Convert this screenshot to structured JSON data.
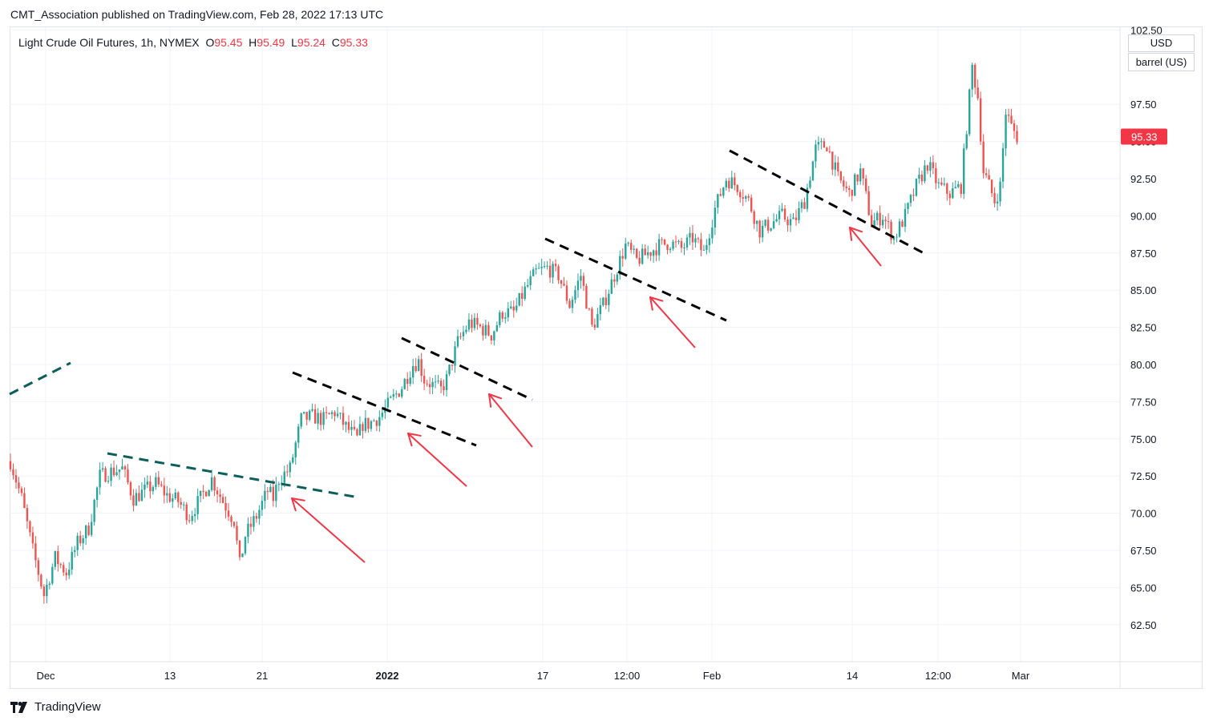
{
  "header": {
    "published_by": "CMT_Association published on TradingView.com, Feb 28, 2022 17:13 UTC"
  },
  "legend": {
    "symbol": "Light Crude Oil Futures, 1h, NYMEX",
    "open_label": "O",
    "open": "95.45",
    "high_label": "H",
    "high": "95.49",
    "low_label": "L",
    "low": "95.24",
    "close_label": "C",
    "close": "95.33"
  },
  "price_scale": {
    "currency": "USD",
    "unit": "barrel (US)",
    "last_price": "95.33",
    "last_price_color": "#f23645"
  },
  "footer": {
    "brand": "TradingView"
  },
  "colors": {
    "up": "#26a69a",
    "down": "#ef5350",
    "arrow": "#f23645",
    "teal_trend": "#0b5e5a",
    "black_trend": "#000000"
  },
  "chart_data": {
    "type": "candlestick",
    "title": "Light Crude Oil Futures, 1h, NYMEX",
    "ylim": [
      60,
      102.5
    ],
    "y_ticks": [
      "102.50",
      "97.50",
      "95.00",
      "92.50",
      "90.00",
      "87.50",
      "85.00",
      "82.50",
      "80.00",
      "77.50",
      "75.00",
      "72.50",
      "70.00",
      "67.50",
      "65.00",
      "62.50"
    ],
    "x_ticks": [
      "Dec",
      "13",
      "21",
      "2022",
      "17",
      "12:00",
      "Feb",
      "14",
      "12:00",
      "Mar"
    ],
    "x_ticks_bold": [
      "2022"
    ],
    "price_path": [
      {
        "d": 0.0,
        "p": 73.5
      },
      {
        "d": 1.0,
        "p": 71.0
      },
      {
        "d": 2.0,
        "p": 67.5
      },
      {
        "d": 3.0,
        "p": 64.5
      },
      {
        "d": 4.0,
        "p": 67.0
      },
      {
        "d": 5.0,
        "p": 66.0
      },
      {
        "d": 6.0,
        "p": 68.0
      },
      {
        "d": 7.0,
        "p": 69.0
      },
      {
        "d": 8.0,
        "p": 72.5
      },
      {
        "d": 9.0,
        "p": 72.8
      },
      {
        "d": 10.0,
        "p": 73.0
      },
      {
        "d": 11.0,
        "p": 71.0
      },
      {
        "d": 12.0,
        "p": 71.5
      },
      {
        "d": 13.0,
        "p": 72.0
      },
      {
        "d": 14.0,
        "p": 71.2
      },
      {
        "d": 15.0,
        "p": 70.8
      },
      {
        "d": 16.0,
        "p": 69.8
      },
      {
        "d": 17.0,
        "p": 71.0
      },
      {
        "d": 18.0,
        "p": 72.3
      },
      {
        "d": 19.0,
        "p": 70.8
      },
      {
        "d": 20.0,
        "p": 69.5
      },
      {
        "d": 20.5,
        "p": 66.5
      },
      {
        "d": 21.0,
        "p": 68.5
      },
      {
        "d": 22.0,
        "p": 69.8
      },
      {
        "d": 23.0,
        "p": 71.5
      },
      {
        "d": 23.5,
        "p": 71.0
      },
      {
        "d": 24.0,
        "p": 72.3
      },
      {
        "d": 25.0,
        "p": 73.0
      },
      {
        "d": 26.0,
        "p": 76.3
      },
      {
        "d": 27.0,
        "p": 76.5
      },
      {
        "d": 28.0,
        "p": 76.3
      },
      {
        "d": 29.0,
        "p": 76.8
      },
      {
        "d": 30.0,
        "p": 75.8
      },
      {
        "d": 31.0,
        "p": 75.0
      },
      {
        "d": 31.5,
        "p": 76.0
      },
      {
        "d": 32.0,
        "p": 76.0
      },
      {
        "d": 33.0,
        "p": 76.5
      },
      {
        "d": 34.0,
        "p": 77.5
      },
      {
        "d": 35.0,
        "p": 78.5
      },
      {
        "d": 36.0,
        "p": 80.0
      },
      {
        "d": 36.5,
        "p": 80.2
      },
      {
        "d": 37.0,
        "p": 79.0
      },
      {
        "d": 38.0,
        "p": 78.5
      },
      {
        "d": 38.5,
        "p": 78.3
      },
      {
        "d": 39.0,
        "p": 79.0
      },
      {
        "d": 40.0,
        "p": 81.5
      },
      {
        "d": 41.0,
        "p": 82.8
      },
      {
        "d": 42.0,
        "p": 82.5
      },
      {
        "d": 43.0,
        "p": 82.0
      },
      {
        "d": 44.0,
        "p": 83.5
      },
      {
        "d": 45.0,
        "p": 83.5
      },
      {
        "d": 46.0,
        "p": 85.0
      },
      {
        "d": 47.0,
        "p": 86.2
      },
      {
        "d": 48.0,
        "p": 86.5
      },
      {
        "d": 49.0,
        "p": 86.0
      },
      {
        "d": 50.0,
        "p": 84.0
      },
      {
        "d": 51.0,
        "p": 86.0
      },
      {
        "d": 52.0,
        "p": 82.5
      },
      {
        "d": 53.0,
        "p": 84.0
      },
      {
        "d": 54.0,
        "p": 86.0
      },
      {
        "d": 55.0,
        "p": 88.0
      },
      {
        "d": 56.0,
        "p": 87.0
      },
      {
        "d": 57.0,
        "p": 87.5
      },
      {
        "d": 58.0,
        "p": 88.0
      },
      {
        "d": 59.0,
        "p": 88.2
      },
      {
        "d": 60.0,
        "p": 87.8
      },
      {
        "d": 61.0,
        "p": 88.5
      },
      {
        "d": 62.0,
        "p": 87.5
      },
      {
        "d": 63.0,
        "p": 90.5
      },
      {
        "d": 64.0,
        "p": 92.5
      },
      {
        "d": 65.0,
        "p": 92.0
      },
      {
        "d": 66.0,
        "p": 91.0
      },
      {
        "d": 67.0,
        "p": 89.0
      },
      {
        "d": 68.0,
        "p": 89.5
      },
      {
        "d": 69.0,
        "p": 90.0
      },
      {
        "d": 70.0,
        "p": 89.5
      },
      {
        "d": 71.0,
        "p": 91.0
      },
      {
        "d": 72.0,
        "p": 94.5
      },
      {
        "d": 73.0,
        "p": 94.8
      },
      {
        "d": 74.0,
        "p": 92.5
      },
      {
        "d": 75.0,
        "p": 91.5
      },
      {
        "d": 76.0,
        "p": 93.0
      },
      {
        "d": 77.0,
        "p": 89.5
      },
      {
        "d": 78.0,
        "p": 90.0
      },
      {
        "d": 79.0,
        "p": 88.5
      },
      {
        "d": 80.0,
        "p": 90.0
      },
      {
        "d": 81.0,
        "p": 92.0
      },
      {
        "d": 82.0,
        "p": 93.5
      },
      {
        "d": 83.0,
        "p": 92.0
      },
      {
        "d": 84.0,
        "p": 91.5
      },
      {
        "d": 85.0,
        "p": 92.0
      },
      {
        "d": 86.0,
        "p": 100.0
      },
      {
        "d": 86.5,
        "p": 98.0
      },
      {
        "d": 87.0,
        "p": 93.0
      },
      {
        "d": 88.0,
        "p": 91.0
      },
      {
        "d": 88.5,
        "p": 92.0
      },
      {
        "d": 89.0,
        "p": 97.0
      },
      {
        "d": 89.5,
        "p": 96.0
      },
      {
        "d": 90.0,
        "p": 95.33
      }
    ]
  }
}
